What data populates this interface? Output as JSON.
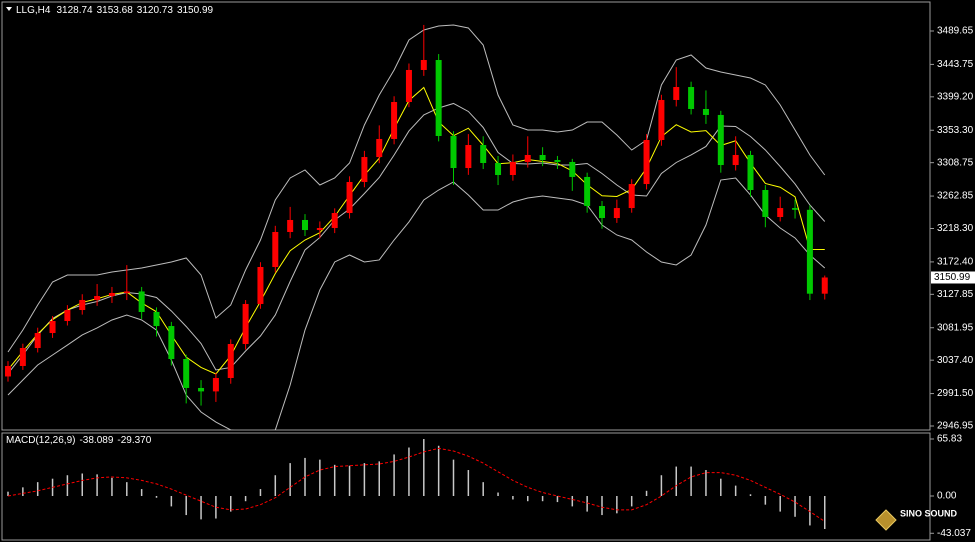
{
  "chart_data": [
    {
      "type": "candlestick",
      "symbol": "LLG,H4",
      "open": [
        3015.0,
        3029.4,
        3054.1,
        3074.7,
        3091.2,
        3106.3,
        3120.1,
        3125.5,
        3129.7,
        3131.8,
        3103.6,
        3084.3,
        3039.0,
        2999.2,
        2994.5,
        3012.9,
        3059.6,
        3114.6,
        3165.4,
        3213.5,
        3230.0,
        3216.2,
        3219.0,
        3239.6,
        3282.2,
        3316.5,
        3341.3,
        3392.1,
        3436.1,
        3449.8,
        3345.4,
        3301.4,
        3333.0,
        3308.3,
        3291.8,
        3309.7,
        3319.3,
        3312.4,
        3309.7,
        3289.1,
        3249.2,
        3232.7,
        3246.4,
        3279.4,
        3339.9,
        3394.9,
        3412.7,
        3382.5,
        3374.3,
        3305.5,
        3319.3,
        3271.2,
        3234.1,
        3246.4,
        3244.0,
        3128.74
      ],
      "high": [
        3036,
        3060,
        3082,
        3098,
        3113,
        3128,
        3142,
        3138,
        3168,
        3138,
        3110,
        3090,
        3045,
        3010,
        3020,
        3066,
        3120,
        3172,
        3222,
        3248,
        3238,
        3228,
        3246,
        3290,
        3325,
        3360,
        3400,
        3445,
        3498,
        3458,
        3352,
        3348,
        3345,
        3318,
        3320,
        3345,
        3330,
        3318,
        3314,
        3295,
        3256,
        3258,
        3286,
        3348,
        3402,
        3440,
        3420,
        3408,
        3380,
        3345,
        3325,
        3278,
        3262,
        3258,
        3250,
        3153.68
      ],
      "low": [
        3008,
        3024,
        3048,
        3068,
        3085,
        3100,
        3112,
        3116,
        3120,
        3094,
        3070,
        3030,
        2978,
        2975,
        2980,
        3005,
        3052,
        3108,
        3158,
        3205,
        3208,
        3205,
        3212,
        3232,
        3275,
        3308,
        3334,
        3385,
        3428,
        3338,
        3278,
        3292,
        3300,
        3278,
        3284,
        3302,
        3304,
        3300,
        3270,
        3240,
        3218,
        3226,
        3240,
        3272,
        3332,
        3386,
        3375,
        3362,
        3295,
        3298,
        3262,
        3220,
        3228,
        3232,
        3120,
        3120.73
      ],
      "close": [
        3029.4,
        3054.1,
        3074.7,
        3091.2,
        3106.3,
        3120.1,
        3125.5,
        3129.7,
        3131.8,
        3103.6,
        3084.3,
        3039.0,
        2999.2,
        2994.5,
        3012.9,
        3059.6,
        3114.6,
        3165.4,
        3213.5,
        3230.0,
        3216.2,
        3219.0,
        3239.6,
        3282.2,
        3316.5,
        3341.3,
        3392.1,
        3436.1,
        3449.8,
        3345.4,
        3301.4,
        3333.0,
        3308.3,
        3291.8,
        3309.7,
        3319.3,
        3312.4,
        3309.7,
        3289.1,
        3249.2,
        3232.7,
        3246.4,
        3279.4,
        3339.9,
        3394.9,
        3412.7,
        3382.5,
        3374.3,
        3305.5,
        3319.3,
        3271.2,
        3234.1,
        3246.4,
        3244.0,
        3128.74,
        3150.99
      ],
      "up_color": "#ff0000",
      "down_color": "#00c800",
      "overlays": [
        {
          "color": "#bdbdbd",
          "values": [
            3048.6,
            3078.8,
            3113.2,
            3144.8,
            3154.4,
            3154.4,
            3154.4,
            3158.5,
            3161.3,
            3164.0,
            3168.2,
            3172.3,
            3177.8,
            3154.4,
            3095.3,
            3113.2,
            3161.3,
            3202.5,
            3257.5,
            3287.7,
            3298.7,
            3278.1,
            3287.7,
            3308.3,
            3360.5,
            3401.7,
            3436.1,
            3477.3,
            3491.0,
            3496.5,
            3497.9,
            3493.8,
            3470.4,
            3401.7,
            3360.5,
            3353.6,
            3353.6,
            3350.9,
            3353.6,
            3364.6,
            3364.6,
            3346.8,
            3326.1,
            3339.9,
            3415.5,
            3449.8,
            3456.7,
            3438.8,
            3433.3,
            3429.2,
            3425.1,
            3415.5,
            3388.0,
            3353.6,
            3319.3,
            3291.8
          ]
        },
        {
          "color": "#bdbdbd",
          "values": [
            3019.1,
            3044.5,
            3072.0,
            3094.7,
            3106.3,
            3113.2,
            3118.0,
            3125.6,
            3130.4,
            3128.3,
            3123.5,
            3105.0,
            3083.7,
            3060.3,
            3023.9,
            3027.4,
            3050.0,
            3070.6,
            3099.5,
            3145.5,
            3188.8,
            3206.0,
            3230.0,
            3245.1,
            3266.4,
            3288.4,
            3319.3,
            3352.3,
            3374.3,
            3383.9,
            3390.1,
            3379.1,
            3357.1,
            3322.7,
            3307.6,
            3306.9,
            3308.3,
            3305.6,
            3305.6,
            3307.6,
            3293.9,
            3278.1,
            3264.3,
            3263.0,
            3293.9,
            3309.0,
            3319.3,
            3331.0,
            3359.1,
            3358.5,
            3344.7,
            3326.2,
            3303.5,
            3279.5,
            3250.6,
            3227.9
          ]
        },
        {
          "color": "#bdbdbd",
          "values": [
            2989.5,
            3010.1,
            3030.8,
            3044.5,
            3058.2,
            3072.0,
            3081.6,
            3092.6,
            3099.4,
            3092.6,
            3078.8,
            3037.6,
            2989.5,
            2966.2,
            2952.4,
            2941.5,
            2938.7,
            2938.7,
            2941.5,
            3003.3,
            3078.8,
            3133.8,
            3172.3,
            3181.9,
            3172.3,
            3175.1,
            3202.5,
            3227.3,
            3257.5,
            3271.2,
            3282.2,
            3264.3,
            3243.7,
            3243.7,
            3254.7,
            3260.2,
            3263.0,
            3260.2,
            3257.5,
            3250.6,
            3223.1,
            3209.4,
            3202.5,
            3186.0,
            3172.3,
            3168.2,
            3181.9,
            3223.1,
            3284.9,
            3287.7,
            3264.3,
            3236.8,
            3219.0,
            3205.3,
            3181.9,
            3164.0
          ]
        },
        {
          "color": "#ffff00",
          "values": [
            3024.3,
            3049.3,
            3073.4,
            3093.0,
            3106.3,
            3116.7,
            3121.8,
            3127.7,
            3131.1,
            3116.0,
            3103.9,
            3072.0,
            3041.5,
            3027.4,
            3018.4,
            3043.5,
            3082.3,
            3118.0,
            3156.5,
            3187.8,
            3202.5,
            3212.5,
            3234.8,
            3263.7,
            3291.5,
            3314.9,
            3355.7,
            3394.2,
            3412.1,
            3364.7,
            3345.8,
            3356.1,
            3332.7,
            3307.3,
            3308.7,
            3313.1,
            3310.4,
            3307.7,
            3297.4,
            3278.4,
            3263.3,
            3262.3,
            3271.9,
            3301.5,
            3344.4,
            3360.9,
            3350.9,
            3352.7,
            3332.3,
            3338.9,
            3308.0,
            3280.2,
            3275.0,
            3261.8,
            3189.7,
            3189.4
          ]
        }
      ],
      "ylim": [
        2941.45,
        3529.5
      ],
      "yticks": [
        3489.65,
        3443.75,
        {
          "value": 3399.2,
          "label": "3399.20"
        },
        {
          "value": 3353.3,
          "label": "3353.30"
        },
        3308.75,
        3262.85,
        {
          "value": 3218.3,
          "label": "3218.30"
        },
        {
          "value": 3172.4,
          "label": "3172.40"
        },
        3127.85,
        3081.95,
        {
          "value": 3037.4,
          "label": "3037.40"
        },
        {
          "value": 2991.5,
          "label": "2991.50"
        },
        2946.95
      ]
    },
    {
      "type": "macd",
      "title": "MACD(12,26,9)",
      "series": [
        {
          "kind": "bar",
          "color": "#c8c8c8",
          "values": [
            5,
            10,
            16,
            20,
            24,
            26,
            25,
            21,
            16,
            8,
            -2,
            -12,
            -22,
            -27,
            -26,
            -18,
            -6,
            8,
            24,
            38,
            44,
            42,
            36,
            35,
            38,
            40,
            48,
            56,
            65.83,
            58,
            42,
            30,
            16,
            4,
            -4,
            -6,
            -6,
            -7,
            -12,
            -18,
            -22,
            -20,
            -12,
            6,
            24,
            34,
            34,
            30,
            20,
            12,
            2,
            -10,
            -18,
            -24,
            -34,
            -38.089
          ]
        },
        {
          "kind": "line",
          "dashed": true,
          "color": "#ff0000",
          "values": [
            0,
            3,
            6,
            10,
            14,
            18,
            21,
            22,
            21,
            18,
            14,
            8,
            1,
            -6,
            -13,
            -16,
            -15,
            -10,
            -2,
            10,
            22,
            30,
            34,
            35,
            36,
            37,
            40,
            45,
            51,
            55,
            52,
            46,
            38,
            28,
            18,
            10,
            4,
            0,
            -4,
            -8,
            -13,
            -16,
            -16,
            -10,
            0,
            12,
            22,
            27,
            27,
            24,
            18,
            10,
            2,
            -7,
            -18,
            -29.37
          ],
          "value_labels": [
            null,
            null,
            null,
            null,
            null,
            null,
            null,
            null,
            null,
            null,
            null,
            null,
            null,
            null,
            null,
            null,
            null,
            null,
            null,
            null,
            null,
            null,
            null,
            null,
            null,
            null,
            null,
            null,
            null,
            null,
            null,
            null,
            null,
            null,
            null,
            null,
            null,
            null,
            null,
            null,
            null,
            null,
            null,
            null,
            null,
            null,
            null,
            null,
            null,
            null,
            null,
            null,
            null,
            null,
            null,
            "-29.370"
          ]
        }
      ],
      "ylim": [
        -50.8,
        72.76
      ],
      "yticks": [
        65.83,
        {
          "value": 0,
          "label": "0.00"
        },
        -43.037
      ]
    }
  ],
  "watermark": "SINO SOUND"
}
